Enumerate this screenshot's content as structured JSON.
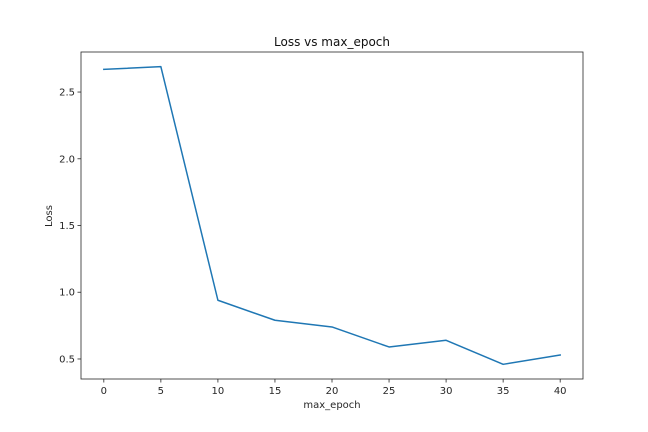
{
  "chart_data": {
    "type": "line",
    "title": "Loss vs max_epoch",
    "xlabel": "max_epoch",
    "ylabel": "Loss",
    "x": [
      0,
      5,
      10,
      15,
      20,
      25,
      30,
      35,
      40
    ],
    "series": [
      {
        "values": [
          2.67,
          2.69,
          0.94,
          0.79,
          0.74,
          0.59,
          0.64,
          0.46,
          0.53
        ],
        "color": "#1f77b4"
      }
    ],
    "x_ticks": [
      0,
      5,
      10,
      15,
      20,
      25,
      30,
      35,
      40
    ],
    "x_tick_labels": [
      "0",
      "5",
      "10",
      "15",
      "20",
      "25",
      "30",
      "35",
      "40"
    ],
    "y_ticks": [
      0.5,
      1.0,
      1.5,
      2.0,
      2.5
    ],
    "y_tick_labels": [
      "0.5",
      "1.0",
      "1.5",
      "2.0",
      "2.5"
    ],
    "xlim": [
      -2,
      42
    ],
    "ylim": [
      0.35,
      2.8
    ],
    "grid": false,
    "legend": false
  }
}
